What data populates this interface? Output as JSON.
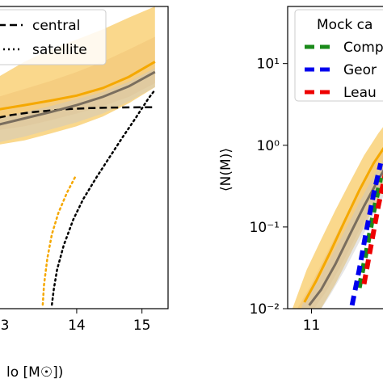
{
  "chart_data": [
    {
      "type": "line",
      "panel": "left (cropped)",
      "xlabel_visible": "lo [M☉])",
      "x_ticks": [
        14,
        15
      ],
      "x_tick_partial": "3",
      "xlim": [
        12.8,
        15.4
      ],
      "yscale": "log",
      "ylim": [
        0.0001,
        100
      ],
      "legend": {
        "location": "top-right",
        "entries": [
          {
            "label": "central",
            "style": "dashed",
            "color": "#000000"
          },
          {
            "label": "satellite",
            "style": "dotted",
            "color": "#000000"
          }
        ]
      },
      "series": [
        {
          "name": "central",
          "style": "dashed",
          "color": "#000000",
          "x": [
            12.8,
            13.0,
            13.3,
            13.6,
            13.9,
            14.2,
            14.5,
            14.8,
            15.2
          ],
          "y": [
            0.62,
            0.7,
            0.79,
            0.86,
            0.92,
            0.96,
            0.98,
            0.99,
            1.0
          ]
        },
        {
          "name": "satellite",
          "style": "dotted",
          "color": "#000000",
          "x": [
            13.62,
            13.65,
            13.7,
            13.8,
            13.95,
            14.1,
            14.3,
            14.5,
            14.7,
            14.9,
            15.1,
            15.2
          ],
          "y": [
            0.00012,
            0.00025,
            0.0006,
            0.0018,
            0.006,
            0.015,
            0.04,
            0.1,
            0.25,
            0.6,
            1.5,
            2.2
          ]
        },
        {
          "color": "#f5a800",
          "style": "dotted",
          "x": [
            13.48,
            13.5,
            13.55,
            13.62,
            13.72,
            13.85,
            13.98
          ],
          "y": [
            0.00012,
            0.0003,
            0.001,
            0.003,
            0.008,
            0.02,
            0.042
          ]
        },
        {
          "color": "#7a6e5e",
          "style": "solid",
          "x": [
            12.8,
            13.2,
            13.6,
            14.0,
            14.4,
            14.8,
            15.2
          ],
          "y": [
            0.45,
            0.6,
            0.8,
            1.1,
            1.6,
            2.6,
            5.0
          ]
        },
        {
          "color": "#f5a800",
          "style": "solid",
          "x": [
            12.8,
            13.2,
            13.6,
            14.0,
            14.4,
            14.8,
            15.2
          ],
          "y": [
            0.9,
            1.1,
            1.35,
            1.7,
            2.4,
            4.0,
            8.0
          ]
        }
      ],
      "bands": [
        {
          "color": "#f5a800",
          "x": [
            12.8,
            13.2,
            13.6,
            14.0,
            14.4,
            14.8,
            15.2
          ],
          "lower": [
            0.18,
            0.22,
            0.3,
            0.42,
            0.65,
            1.2,
            2.5
          ],
          "upper": [
            4.0,
            8.0,
            14.0,
            22.0,
            35.0,
            60.0,
            100.0
          ]
        },
        {
          "color": "#f0c070",
          "x": [
            12.8,
            13.2,
            13.6,
            14.0,
            14.4,
            14.8,
            15.2
          ],
          "lower": [
            0.35,
            0.42,
            0.55,
            0.75,
            1.05,
            1.6,
            3.0
          ],
          "upper": [
            1.6,
            2.3,
            3.3,
            5.0,
            8.0,
            14.0,
            25.0
          ]
        },
        {
          "color": "#c8c8c8",
          "x": [
            12.8,
            13.2,
            13.6,
            14.0,
            14.4,
            14.8,
            15.2
          ],
          "lower": [
            0.2,
            0.26,
            0.36,
            0.5,
            0.75,
            1.3,
            2.5
          ],
          "upper": [
            0.62,
            0.8,
            1.05,
            1.45,
            2.0,
            3.2,
            6.0
          ]
        }
      ]
    },
    {
      "type": "line",
      "panel": "right (cropped)",
      "ylabel": "⟨N(M)⟩",
      "yscale": "log",
      "ylim": [
        0.01,
        50
      ],
      "y_ticks": [
        "10⁻²",
        "10⁻¹",
        "10⁰",
        "10¹"
      ],
      "y_tick_values": [
        0.01,
        0.1,
        1,
        10
      ],
      "xlim": [
        10.5,
        12.6
      ],
      "x_ticks": [
        11
      ],
      "legend": {
        "location": "top-left",
        "title": "Mock ca",
        "entries": [
          {
            "label": "Comp",
            "style": "dashed",
            "color": "#1a8a1a"
          },
          {
            "label": "Geor",
            "style": "dashed",
            "color": "#0000ee"
          },
          {
            "label": "Leau",
            "style": "dashed",
            "color": "#ee0000"
          }
        ]
      },
      "series": [
        {
          "color": "#7a6e5e",
          "style": "solid",
          "x": [
            10.95,
            11.2,
            11.5,
            11.8,
            12.1,
            12.4,
            12.6
          ],
          "y": [
            0.011,
            0.017,
            0.035,
            0.08,
            0.18,
            0.38,
            0.6
          ]
        },
        {
          "color": "#f5a800",
          "style": "solid",
          "x": [
            10.85,
            11.1,
            11.4,
            11.7,
            12.0,
            12.3,
            12.6
          ],
          "y": [
            0.012,
            0.022,
            0.05,
            0.12,
            0.28,
            0.6,
            1.1
          ]
        },
        {
          "name": "Comp",
          "color": "#1a8a1a",
          "style": "dashed",
          "x": [
            12.0,
            12.15,
            12.3,
            12.45
          ],
          "y": [
            0.018,
            0.05,
            0.15,
            0.4
          ]
        },
        {
          "name": "Geor",
          "color": "#0000ee",
          "style": "dashed",
          "x": [
            11.85,
            12.0,
            12.15,
            12.3,
            12.45
          ],
          "y": [
            0.011,
            0.03,
            0.09,
            0.25,
            0.6
          ]
        },
        {
          "name": "Leau",
          "color": "#ee0000",
          "style": "dashed",
          "x": [
            12.1,
            12.25,
            12.4,
            12.55
          ],
          "y": [
            0.02,
            0.06,
            0.18,
            0.45
          ]
        }
      ],
      "bands": [
        {
          "color": "#f5a800",
          "x": [
            10.6,
            10.9,
            11.2,
            11.5,
            11.8,
            12.1,
            12.4,
            12.6
          ],
          "lower": [
            0.004,
            0.006,
            0.01,
            0.02,
            0.045,
            0.1,
            0.22,
            0.35
          ],
          "upper": [
            0.01,
            0.03,
            0.07,
            0.16,
            0.35,
            0.75,
            1.4,
            2.0
          ]
        },
        {
          "color": "#f0c070",
          "x": [
            10.7,
            11.0,
            11.3,
            11.6,
            11.9,
            12.2,
            12.5,
            12.6
          ],
          "lower": [
            0.006,
            0.009,
            0.016,
            0.032,
            0.07,
            0.15,
            0.33,
            0.42
          ],
          "upper": [
            0.01,
            0.02,
            0.045,
            0.1,
            0.22,
            0.48,
            0.95,
            1.2
          ]
        },
        {
          "color": "#c8c8c8",
          "x": [
            10.8,
            11.1,
            11.4,
            11.7,
            12.0,
            12.3,
            12.6
          ],
          "lower": [
            0.005,
            0.008,
            0.015,
            0.03,
            0.065,
            0.14,
            0.3
          ],
          "upper": [
            0.011,
            0.02,
            0.042,
            0.09,
            0.2,
            0.42,
            0.85
          ]
        }
      ]
    }
  ]
}
